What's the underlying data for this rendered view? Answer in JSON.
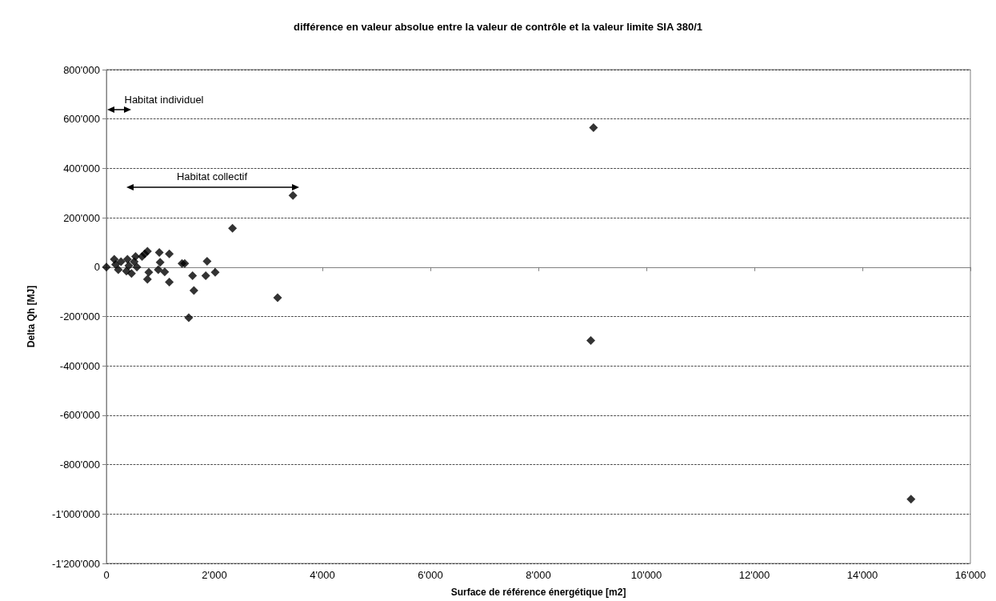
{
  "chart_data": {
    "type": "scatter",
    "title": "différence en valeur absolue entre la valeur de contrôle et la valeur limite SIA 380/1",
    "xlabel": "Surface de référence énergétique [m2]",
    "ylabel": "Delta Qh [MJ]",
    "series": [
      {
        "color": "#000000",
        "x": [
          0,
          145,
          170,
          220,
          270,
          370,
          390,
          415,
          465,
          515,
          540,
          565,
          660,
          710,
          760,
          785,
          760,
          980,
          995,
          960,
          1080,
          1165,
          1165,
          1400,
          1450,
          1595,
          1620,
          1525,
          1840,
          1865,
          2015,
          2335,
          3170,
          3455,
          9020,
          8970,
          14900
        ],
        "values": [
          0,
          32000,
          11000,
          -10000,
          22000,
          -16000,
          32000,
          6000,
          -26000,
          22000,
          43000,
          0,
          43000,
          54000,
          64000,
          -21000,
          -49000,
          59000,
          20000,
          -10000,
          -19000,
          54000,
          -61000,
          15000,
          15000,
          -35000,
          -95000,
          -205000,
          -35000,
          24000,
          -21000,
          157000,
          -124000,
          290000,
          565000,
          -297000,
          -940000
        ]
      }
    ],
    "annotations": [
      "Habitat individuel",
      "Habitat collectif"
    ],
    "xlim": [
      0,
      16000
    ],
    "xticks": [
      0,
      {
        "value": 2000,
        "label": "2'000"
      },
      {
        "value": 4000,
        "label": "4'000"
      },
      {
        "value": 6000,
        "label": "6'000"
      },
      {
        "value": 8000,
        "label": "8'000"
      },
      {
        "value": 10000,
        "label": "10'000"
      },
      {
        "value": 12000,
        "label": "12'000"
      },
      {
        "value": 14000,
        "label": "14'000"
      },
      {
        "value": 16000,
        "label": "16'000"
      }
    ],
    "ylim": [
      -1200000,
      800000
    ],
    "yticks": [
      {
        "value": -1200000,
        "label": "-1'200'000"
      },
      {
        "value": -1000000,
        "label": "-1'000'000"
      },
      {
        "value": -800000,
        "label": "-800'000"
      },
      {
        "value": -600000,
        "label": "-600'000"
      },
      {
        "value": -400000,
        "label": "-400'000"
      },
      {
        "value": -200000,
        "label": "-200'000"
      },
      0,
      {
        "value": 200000,
        "label": "200'000"
      },
      {
        "value": 400000,
        "label": "400'000"
      },
      {
        "value": 600000,
        "label": "600'000"
      },
      {
        "value": 800000,
        "label": "800'000"
      }
    ],
    "grid": "y",
    "marker": "diamond"
  }
}
